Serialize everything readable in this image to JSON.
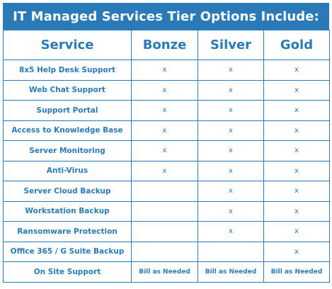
{
  "title": "IT Managed Services Tier Options Include:",
  "columns": [
    "Service",
    "Bonze",
    "Silver",
    "Gold"
  ],
  "rows": [
    {
      "service": "8x5 Help Desk Support",
      "bonze": "x",
      "silver": "x",
      "gold": "x"
    },
    {
      "service": "Web Chat Support",
      "bonze": "x",
      "silver": "x",
      "gold": "x"
    },
    {
      "service": "Support Portal",
      "bonze": "x",
      "silver": "x",
      "gold": "x"
    },
    {
      "service": "Access to Knowledge Base",
      "bonze": "x",
      "silver": "x",
      "gold": "x"
    },
    {
      "service": "Server Monitoring",
      "bonze": "x",
      "silver": "x",
      "gold": "x"
    },
    {
      "service": "Anti-Virus",
      "bonze": "x",
      "silver": "x",
      "gold": "x"
    },
    {
      "service": "Server Cloud Backup",
      "bonze": "",
      "silver": "x",
      "gold": "x"
    },
    {
      "service": "Workstation Backup",
      "bonze": "",
      "silver": "x",
      "gold": "x"
    },
    {
      "service": "Ransomware Protection",
      "bonze": "",
      "silver": "x",
      "gold": "x"
    },
    {
      "service": "Office 365 / G Suite Backup",
      "bonze": "",
      "silver": "",
      "gold": "x"
    },
    {
      "service": "On Site Support",
      "bonze": "Bill as Needed",
      "silver": "Bill as Needed",
      "gold": "Bill as Needed"
    }
  ],
  "colors": {
    "accent": "#2a7ab8",
    "background": "#ffffff"
  }
}
